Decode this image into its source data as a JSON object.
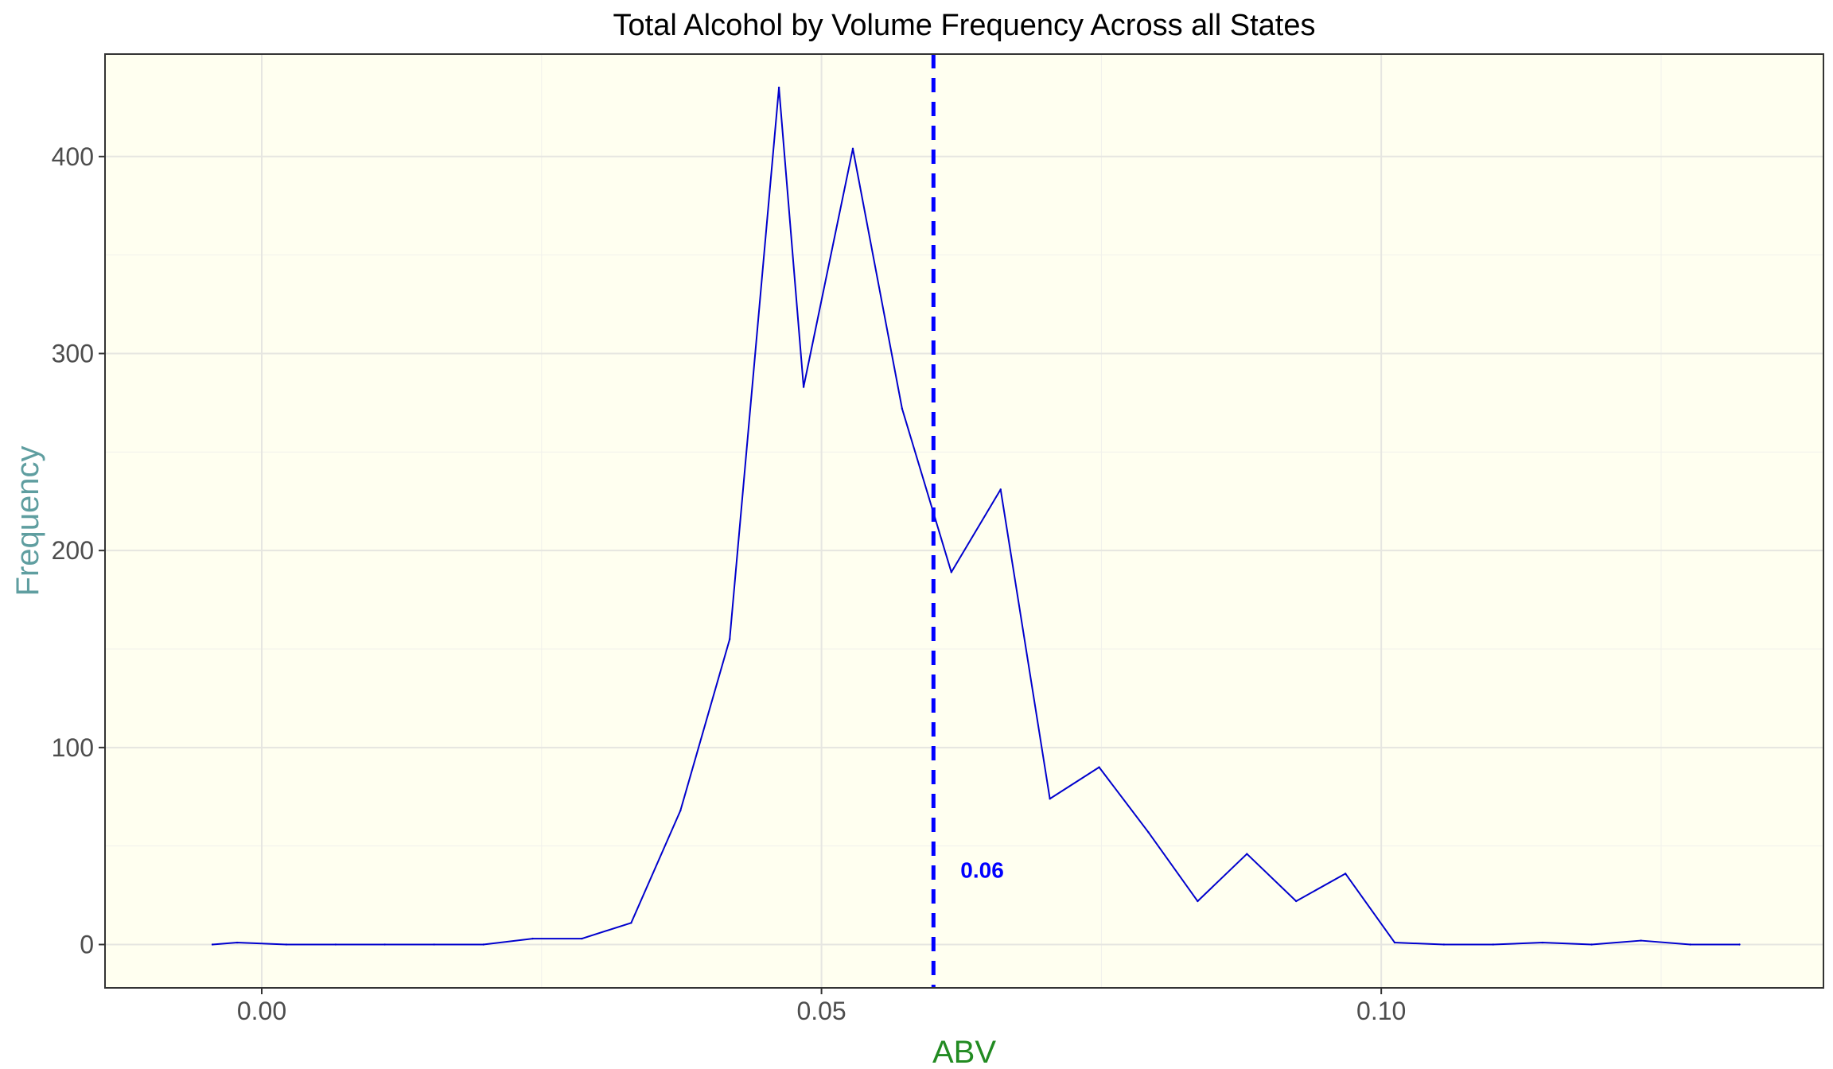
{
  "chart_data": {
    "type": "line",
    "title": "Total Alcohol by Volume Frequency Across all States",
    "xlabel": "ABV",
    "ylabel": "Frequency",
    "xlim": [
      -0.014,
      0.1395
    ],
    "ylim": [
      -22,
      452
    ],
    "x_ticks": [
      {
        "value": 0.0,
        "label": "0.00"
      },
      {
        "value": 0.05,
        "label": "0.05"
      },
      {
        "value": 0.1,
        "label": "0.10"
      }
    ],
    "y_ticks": [
      {
        "value": 0,
        "label": "0"
      },
      {
        "value": 100,
        "label": "100"
      },
      {
        "value": 200,
        "label": "200"
      },
      {
        "value": 300,
        "label": "300"
      },
      {
        "value": 400,
        "label": "400"
      }
    ],
    "x_minor_ticks": [
      -0.025,
      0.025,
      0.075,
      0.125
    ],
    "y_minor_ticks": [
      50,
      150,
      250,
      350
    ],
    "grid": true,
    "background_color": "#fffff0",
    "title_color": "#000000",
    "xlabel_color": "#228b22",
    "ylabel_color": "#5f9ea0",
    "series": [
      {
        "color": "#0000cd",
        "x": [
          -0.0044,
          -0.0022,
          0.0022,
          0.0066,
          0.011,
          0.0154,
          0.0198,
          0.0242,
          0.0286,
          0.033,
          0.0374,
          0.0418,
          0.0462,
          0.0484,
          0.0528,
          0.0572,
          0.0616,
          0.066,
          0.0704,
          0.0748,
          0.0792,
          0.0836,
          0.088,
          0.0924,
          0.0968,
          0.1012,
          0.1056,
          0.11,
          0.1144,
          0.1188,
          0.1232,
          0.1276,
          0.132
        ],
        "y": [
          0,
          1,
          0,
          0,
          0,
          0,
          0,
          3,
          3,
          11,
          68,
          155,
          435,
          283,
          404,
          272,
          189,
          231,
          74,
          90,
          57,
          22,
          46,
          22,
          36,
          1,
          0,
          0,
          1,
          0,
          2,
          0,
          0
        ]
      }
    ],
    "reference_line": {
      "x": 0.06,
      "color": "#0000ff",
      "style": "dashed",
      "label": "0.06",
      "label_y": 38
    }
  }
}
